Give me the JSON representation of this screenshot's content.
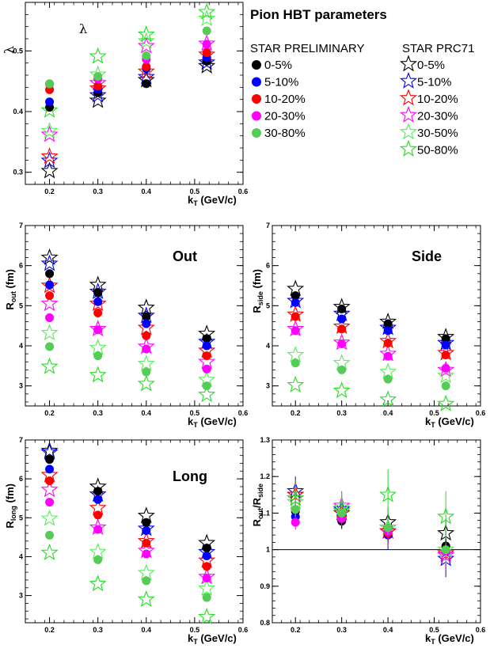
{
  "heading": "Pion HBT parameters",
  "legend": {
    "left_title": "STAR PRELIMINARY",
    "right_title": "STAR PRC71",
    "left_entries": [
      {
        "label": "0-5%",
        "color": "#000000"
      },
      {
        "label": "5-10%",
        "color": "#0000ff"
      },
      {
        "label": "10-20%",
        "color": "#ff0000"
      },
      {
        "label": "20-30%",
        "color": "#ff00ff"
      },
      {
        "label": "30-80%",
        "color": "#55cc55"
      }
    ],
    "right_entries": [
      {
        "label": "0-5%",
        "color": "#000000"
      },
      {
        "label": "5-10%",
        "color": "#0000ff"
      },
      {
        "label": "10-20%",
        "color": "#ff0000"
      },
      {
        "label": "20-30%",
        "color": "#ff00ff"
      },
      {
        "label": "30-50%",
        "color": "#55ee55"
      },
      {
        "label": "50-80%",
        "color": "#22dd22"
      }
    ]
  },
  "chart_data": [
    {
      "type": "scatter",
      "title": "λ",
      "ylabel": "λ",
      "xlabel": "k_T (GeV/c)",
      "xlim": [
        0.15,
        0.6
      ],
      "ylim": [
        0.28,
        0.58
      ],
      "xticks": [
        "0.2",
        "0.3",
        "0.4",
        "0.5",
        "0.6"
      ],
      "yticks": [
        "0.3",
        "0.4",
        "0.5"
      ],
      "ytick_values": [
        0.3,
        0.4,
        0.5
      ],
      "x": [
        0.2,
        0.3,
        0.4,
        0.525
      ],
      "series": [
        {
          "name": "0-5%",
          "marker": "circle",
          "color": "#000000",
          "values": [
            0.407,
            0.431,
            0.446,
            0.483
          ]
        },
        {
          "name": "5-10%",
          "marker": "circle",
          "color": "#0000ff",
          "values": [
            0.416,
            0.437,
            0.471,
            0.489
          ]
        },
        {
          "name": "10-20%",
          "marker": "circle",
          "color": "#ff0000",
          "values": [
            0.436,
            0.442,
            0.474,
            0.497
          ]
        },
        {
          "name": "20-30%",
          "marker": "circle",
          "color": "#ff00ff",
          "values": [
            0.445,
            0.454,
            0.486,
            0.511
          ]
        },
        {
          "name": "30-80%",
          "marker": "circle",
          "color": "#55cc55",
          "values": [
            0.446,
            0.458,
            0.492,
            0.533
          ]
        },
        {
          "name": "0-5%",
          "marker": "star",
          "color": "#000000",
          "values": [
            0.302,
            0.418,
            0.452,
            0.475
          ]
        },
        {
          "name": "5-10%",
          "marker": "star",
          "color": "#0000ff",
          "values": [
            0.319,
            0.427,
            0.457,
            0.481
          ]
        },
        {
          "name": "10-20%",
          "marker": "star",
          "color": "#ff0000",
          "values": [
            0.326,
            0.438,
            0.466,
            0.494
          ]
        },
        {
          "name": "20-30%",
          "marker": "star",
          "color": "#ff00ff",
          "values": [
            0.362,
            0.447,
            0.508,
            0.512
          ]
        },
        {
          "name": "30-50%",
          "marker": "star",
          "color": "#55ee55",
          "values": [
            0.368,
            0.461,
            0.516,
            0.553
          ]
        },
        {
          "name": "50-80%",
          "marker": "star",
          "color": "#22dd22",
          "values": [
            0.402,
            0.491,
            0.527,
            0.564
          ]
        }
      ]
    },
    {
      "type": "scatter",
      "title": "Out",
      "ylabel": "R_out (fm)",
      "xlabel": "k_T (GeV/c)",
      "xlim": [
        0.15,
        0.6
      ],
      "ylim": [
        2.5,
        7.0
      ],
      "xticks": [
        "0.2",
        "0.3",
        "0.4",
        "0.5",
        "0.6"
      ],
      "yticks": [
        "3",
        "4",
        "5",
        "6",
        "7"
      ],
      "ytick_values": [
        3,
        4,
        5,
        6,
        7
      ],
      "x": [
        0.2,
        0.3,
        0.4,
        0.525
      ],
      "series": [
        {
          "name": "0-5%",
          "marker": "circle",
          "color": "#000000",
          "values": [
            5.8,
            5.32,
            4.73,
            4.18
          ]
        },
        {
          "name": "5-10%",
          "marker": "circle",
          "color": "#0000ff",
          "values": [
            5.52,
            5.1,
            4.55,
            4.0
          ]
        },
        {
          "name": "10-20%",
          "marker": "circle",
          "color": "#ff0000",
          "values": [
            5.25,
            4.82,
            4.25,
            3.75
          ]
        },
        {
          "name": "20-30%",
          "marker": "circle",
          "color": "#ff00ff",
          "values": [
            4.7,
            4.4,
            3.92,
            3.42
          ]
        },
        {
          "name": "30-80%",
          "marker": "circle",
          "color": "#55cc55",
          "values": [
            3.98,
            3.75,
            3.35,
            3.0
          ]
        },
        {
          "name": "0-5%",
          "marker": "star",
          "color": "#000000",
          "values": [
            6.2,
            5.52,
            4.95,
            4.3
          ]
        },
        {
          "name": "5-10%",
          "marker": "star",
          "color": "#0000ff",
          "values": [
            6.05,
            5.35,
            4.75,
            4.1
          ]
        },
        {
          "name": "10-20%",
          "marker": "star",
          "color": "#ff0000",
          "values": [
            5.5,
            5.05,
            4.45,
            3.88
          ]
        },
        {
          "name": "20-30%",
          "marker": "star",
          "color": "#ff00ff",
          "values": [
            5.05,
            4.42,
            3.98,
            3.6
          ]
        },
        {
          "name": "30-50%",
          "marker": "star",
          "color": "#55ee55",
          "values": [
            4.32,
            3.95,
            3.55,
            3.15
          ]
        },
        {
          "name": "50-80%",
          "marker": "star",
          "color": "#22dd22",
          "values": [
            3.48,
            3.27,
            3.05,
            2.78
          ]
        }
      ]
    },
    {
      "type": "scatter",
      "title": "Side",
      "ylabel": "R_side (fm)",
      "xlabel": "k_T (GeV/c)",
      "xlim": [
        0.15,
        0.6
      ],
      "ylim": [
        2.5,
        7.0
      ],
      "xticks": [
        "0.2",
        "0.3",
        "0.4",
        "0.5",
        "0.6"
      ],
      "yticks": [
        "3",
        "4",
        "5",
        "6",
        "7"
      ],
      "ytick_values": [
        3,
        4,
        5,
        6,
        7
      ],
      "x": [
        0.2,
        0.3,
        0.4,
        0.525
      ],
      "series": [
        {
          "name": "0-5%",
          "marker": "circle",
          "color": "#000000",
          "values": [
            5.25,
            4.92,
            4.55,
            4.18
          ]
        },
        {
          "name": "5-10%",
          "marker": "circle",
          "color": "#0000ff",
          "values": [
            5.08,
            4.67,
            4.38,
            4.02
          ]
        },
        {
          "name": "10-20%",
          "marker": "circle",
          "color": "#ff0000",
          "values": [
            4.73,
            4.42,
            4.07,
            3.77
          ]
        },
        {
          "name": "20-30%",
          "marker": "circle",
          "color": "#ff00ff",
          "values": [
            4.38,
            4.05,
            3.74,
            3.44
          ]
        },
        {
          "name": "30-80%",
          "marker": "circle",
          "color": "#55cc55",
          "values": [
            3.57,
            3.4,
            3.17,
            3.0
          ]
        },
        {
          "name": "0-5%",
          "marker": "star",
          "color": "#000000",
          "values": [
            5.42,
            4.97,
            4.6,
            4.22
          ]
        },
        {
          "name": "5-10%",
          "marker": "star",
          "color": "#0000ff",
          "values": [
            5.12,
            4.8,
            4.45,
            4.07
          ]
        },
        {
          "name": "10-20%",
          "marker": "star",
          "color": "#ff0000",
          "values": [
            4.78,
            4.48,
            4.12,
            3.82
          ]
        },
        {
          "name": "20-30%",
          "marker": "star",
          "color": "#ff00ff",
          "values": [
            4.42,
            4.08,
            3.8,
            3.4
          ]
        },
        {
          "name": "30-50%",
          "marker": "star",
          "color": "#55ee55",
          "values": [
            3.77,
            3.57,
            3.35,
            3.25
          ]
        },
        {
          "name": "50-80%",
          "marker": "star",
          "color": "#22dd22",
          "values": [
            3.02,
            2.88,
            2.66,
            2.55
          ]
        }
      ]
    },
    {
      "type": "scatter",
      "title": "Long",
      "ylabel": "R_long (fm)",
      "xlabel": "k_T (GeV/c)",
      "xlim": [
        0.15,
        0.6
      ],
      "ylim": [
        2.3,
        7.0
      ],
      "xticks": [
        "0.2",
        "0.3",
        "0.4",
        "0.5",
        "0.6"
      ],
      "yticks": [
        "3",
        "4",
        "5",
        "6",
        "7"
      ],
      "ytick_values": [
        3,
        4,
        5,
        6,
        7
      ],
      "x": [
        0.2,
        0.3,
        0.4,
        0.525
      ],
      "series": [
        {
          "name": "0-5%",
          "marker": "circle",
          "color": "#000000",
          "values": [
            6.5,
            5.68,
            4.88,
            4.22
          ]
        },
        {
          "name": "5-10%",
          "marker": "circle",
          "color": "#0000ff",
          "values": [
            6.25,
            5.47,
            4.67,
            4.02
          ]
        },
        {
          "name": "10-20%",
          "marker": "circle",
          "color": "#ff0000",
          "values": [
            5.95,
            5.07,
            4.35,
            3.75
          ]
        },
        {
          "name": "20-30%",
          "marker": "circle",
          "color": "#ff00ff",
          "values": [
            5.4,
            4.7,
            4.07,
            3.45
          ]
        },
        {
          "name": "30-80%",
          "marker": "circle",
          "color": "#55cc55",
          "values": [
            4.55,
            3.92,
            3.38,
            2.95
          ]
        },
        {
          "name": "0-5%",
          "marker": "star",
          "color": "#000000",
          "values": [
            6.72,
            5.8,
            5.05,
            4.35
          ]
        },
        {
          "name": "5-10%",
          "marker": "star",
          "color": "#0000ff",
          "values": [
            6.68,
            5.6,
            4.72,
            4.12
          ]
        },
        {
          "name": "10-20%",
          "marker": "star",
          "color": "#ff0000",
          "values": [
            6.1,
            5.25,
            4.4,
            3.9
          ]
        },
        {
          "name": "20-30%",
          "marker": "star",
          "color": "#ff00ff",
          "values": [
            5.72,
            4.75,
            4.15,
            3.48
          ]
        },
        {
          "name": "30-50%",
          "marker": "star",
          "color": "#55ee55",
          "values": [
            4.98,
            4.12,
            3.58,
            3.18
          ]
        },
        {
          "name": "50-80%",
          "marker": "star",
          "color": "#22dd22",
          "values": [
            4.1,
            3.3,
            2.9,
            2.45
          ]
        }
      ]
    },
    {
      "type": "scatter",
      "title": "",
      "ylabel": "R_out/R_side",
      "xlabel": "k_T (GeV/c)",
      "xlim": [
        0.15,
        0.6
      ],
      "ylim": [
        0.8,
        1.3
      ],
      "xticks": [
        "0.2",
        "0.3",
        "0.4",
        "0.5",
        "0.6"
      ],
      "yticks": [
        "0.8",
        "0.9",
        "1",
        "1.1",
        "1.2",
        "1.3"
      ],
      "ytick_values": [
        0.8,
        0.9,
        1.0,
        1.1,
        1.2,
        1.3
      ],
      "reference_line": 1.0,
      "x": [
        0.2,
        0.3,
        0.4,
        0.525
      ],
      "series": [
        {
          "name": "0-5%",
          "marker": "circle",
          "color": "#000000",
          "values": [
            1.105,
            1.078,
            1.05,
            1.01
          ],
          "errors": [
            0.02,
            0.02,
            0.02,
            0.02
          ]
        },
        {
          "name": "5-10%",
          "marker": "circle",
          "color": "#0000ff",
          "values": [
            1.09,
            1.09,
            1.04,
            0.995
          ],
          "errors": [
            0.02,
            0.02,
            0.02,
            0.02
          ]
        },
        {
          "name": "10-20%",
          "marker": "circle",
          "color": "#ff0000",
          "values": [
            1.11,
            1.09,
            1.045,
            0.995
          ],
          "errors": [
            0.02,
            0.02,
            0.02,
            0.02
          ]
        },
        {
          "name": "20-30%",
          "marker": "circle",
          "color": "#ff00ff",
          "values": [
            1.075,
            1.085,
            1.05,
            0.995
          ],
          "errors": [
            0.02,
            0.02,
            0.02,
            0.02
          ]
        },
        {
          "name": "30-80%",
          "marker": "circle",
          "color": "#55cc55",
          "values": [
            1.11,
            1.1,
            1.06,
            1.0
          ],
          "errors": [
            0.02,
            0.02,
            0.02,
            0.02
          ]
        },
        {
          "name": "0-5%",
          "marker": "star",
          "color": "#000000",
          "values": [
            1.15,
            1.1,
            1.075,
            1.045
          ],
          "errors": [
            0.04,
            0.04,
            0.04,
            0.04
          ]
        },
        {
          "name": "5-10%",
          "marker": "star",
          "color": "#0000ff",
          "values": [
            1.16,
            1.11,
            1.05,
            0.975
          ],
          "errors": [
            0.04,
            0.04,
            0.05,
            0.05
          ]
        },
        {
          "name": "10-20%",
          "marker": "star",
          "color": "#ff0000",
          "values": [
            1.15,
            1.1,
            1.05,
            0.99
          ],
          "errors": [
            0.04,
            0.04,
            0.04,
            0.04
          ]
        },
        {
          "name": "20-30%",
          "marker": "star",
          "color": "#ff00ff",
          "values": [
            1.14,
            1.12,
            1.06,
            0.985
          ],
          "errors": [
            0.04,
            0.04,
            0.04,
            0.04
          ]
        },
        {
          "name": "30-50%",
          "marker": "star",
          "color": "#55ee55",
          "values": [
            1.13,
            1.115,
            1.06,
            1.0
          ],
          "errors": [
            0.04,
            0.04,
            0.04,
            0.04
          ]
        },
        {
          "name": "50-80%",
          "marker": "star",
          "color": "#22dd22",
          "values": [
            1.14,
            1.105,
            1.15,
            1.09
          ],
          "errors": [
            0.05,
            0.05,
            0.07,
            0.07
          ]
        }
      ]
    }
  ]
}
